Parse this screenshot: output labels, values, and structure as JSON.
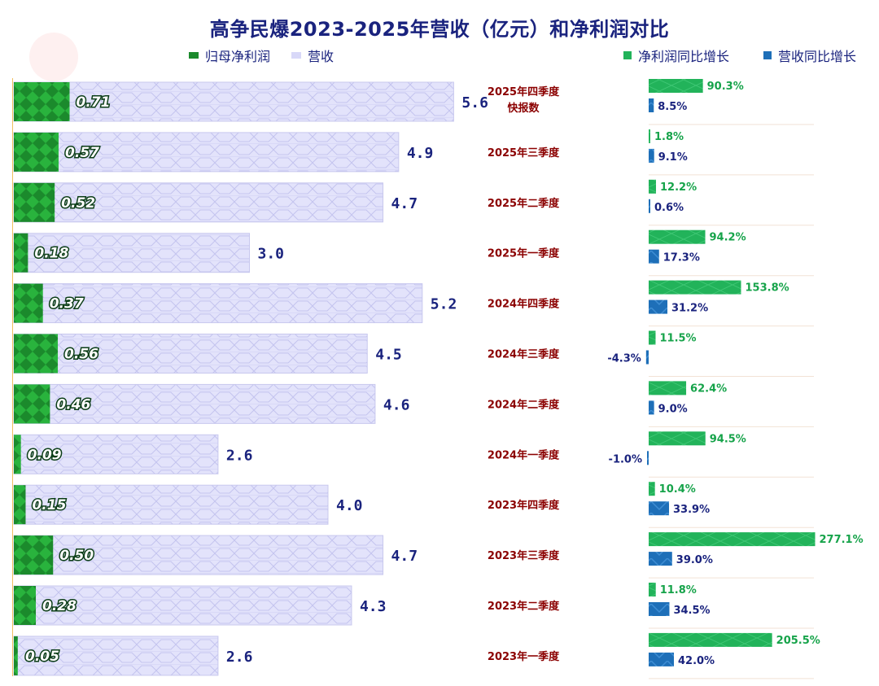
{
  "title": "高争民爆2023-2025年营收（亿元）和净利润对比",
  "legend": {
    "net_profit": "归母净利润",
    "revenue": "营收",
    "np_growth": "净利润同比增长",
    "rev_growth": "营收同比增长"
  },
  "colors": {
    "net_profit": "#1b8a2c",
    "revenue": "#e3e3fb",
    "np_growth": "#22b35a",
    "rev_growth": "#1e6fb8",
    "title": "#1a237e",
    "category": "#8b0000"
  },
  "chart_data": [
    {
      "type": "bar",
      "orientation": "horizontal",
      "categories": [
        [
          "2025年四季度",
          "快报数"
        ],
        [
          "2025年三季度"
        ],
        [
          "2025年二季度"
        ],
        [
          "2025年一季度"
        ],
        [
          "2024年四季度"
        ],
        [
          "2024年三季度"
        ],
        [
          "2024年二季度"
        ],
        [
          "2024年一季度"
        ],
        [
          "2023年四季度"
        ],
        [
          "2023年三季度"
        ],
        [
          "2023年二季度"
        ],
        [
          "2023年一季度"
        ]
      ],
      "series": [
        {
          "name": "归母净利润",
          "values": [
            0.71,
            0.57,
            0.52,
            0.18,
            0.37,
            0.56,
            0.46,
            0.09,
            0.15,
            0.5,
            0.28,
            0.05
          ],
          "labels": [
            "0.71",
            "0.57",
            "0.52",
            "0.18",
            "0.37",
            "0.56",
            "0.46",
            "0.09",
            "0.15",
            "0.50",
            "0.28",
            "0.05"
          ]
        },
        {
          "name": "营收",
          "values": [
            5.6,
            4.9,
            4.7,
            3.0,
            5.2,
            4.5,
            4.6,
            2.6,
            4.0,
            4.7,
            4.3,
            2.6
          ],
          "labels": [
            "5.6",
            "4.9",
            "4.7",
            "3.0",
            "5.2",
            "4.5",
            "4.6",
            "2.6",
            "4.0",
            "4.7",
            "4.3",
            "2.6"
          ]
        }
      ],
      "unit": "亿元"
    },
    {
      "type": "bar",
      "orientation": "horizontal",
      "series": [
        {
          "name": "净利润同比增长",
          "values": [
            90.3,
            1.8,
            12.2,
            94.2,
            153.8,
            11.5,
            62.4,
            94.5,
            10.4,
            277.1,
            11.8,
            205.5
          ],
          "labels": [
            "90.3%",
            "1.8%",
            "12.2%",
            "94.2%",
            "153.8%",
            "11.5%",
            "62.4%",
            "94.5%",
            "10.4%",
            "277.1%",
            "11.8%",
            "205.5%"
          ]
        },
        {
          "name": "营收同比增长",
          "values": [
            8.5,
            9.1,
            0.6,
            17.3,
            31.2,
            -4.3,
            9.0,
            -1.0,
            33.9,
            39.0,
            34.5,
            42.0
          ],
          "labels": [
            "8.5%",
            "9.1%",
            "0.6%",
            "17.3%",
            "31.2%",
            "-4.3%",
            "9.0%",
            "-1.0%",
            "33.9%",
            "39.0%",
            "34.5%",
            "42.0%"
          ]
        }
      ],
      "unit": "%"
    }
  ]
}
